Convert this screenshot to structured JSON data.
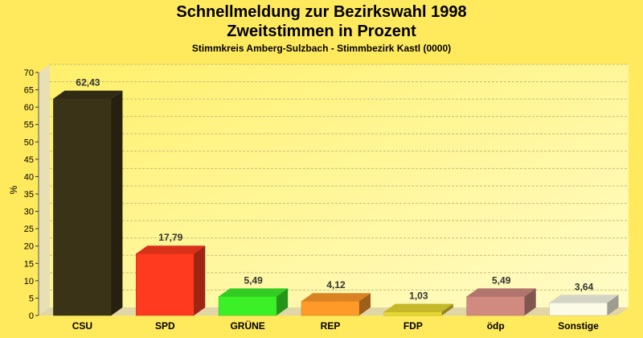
{
  "chart_data": {
    "type": "bar",
    "title": "Schnellmeldung zur Bezirkswahl 1998",
    "subtitle": "Zweitstimmen in Prozent",
    "caption": "Stimmkreis Amberg-Sulzbach - Stimmbezirk Kastl (0000)",
    "ylabel": "%",
    "ylim": [
      0,
      70
    ],
    "yticks": [
      "0",
      "5",
      "10",
      "15",
      "20",
      "25",
      "30",
      "35",
      "40",
      "45",
      "50",
      "55",
      "60",
      "65",
      "70"
    ],
    "grid": true,
    "categories": [
      "CSU",
      "SPD",
      "GRÜNE",
      "REP",
      "FDP",
      "ödp",
      "Sonstige"
    ],
    "values": [
      62.43,
      17.79,
      5.49,
      4.12,
      1.03,
      5.49,
      3.64
    ],
    "value_labels": [
      "62,43",
      "17,79",
      "5,49",
      "4,12",
      "1,03",
      "5,49",
      "3,64"
    ],
    "colors": [
      "#3b3318",
      "#ff3a1e",
      "#3cf028",
      "#ff9a28",
      "#e8d830",
      "#d08a80",
      "#fbfbe8"
    ]
  }
}
